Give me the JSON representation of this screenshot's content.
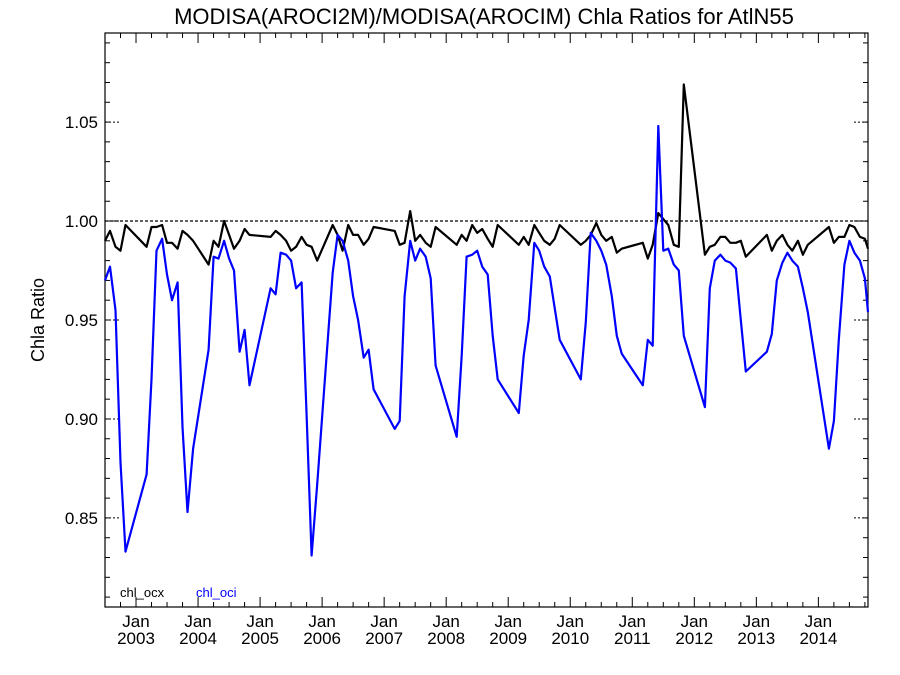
{
  "chart_data": {
    "type": "line",
    "title": "MODISA(AROCI2M)/MODISA(AROCIM)  Chla Ratios for AtlN55",
    "ylabel": "Chla Ratio",
    "xlabel": "",
    "ylim": [
      0.805,
      1.095
    ],
    "xlim": [
      2002.5,
      2014.8
    ],
    "x_ticks": [
      {
        "month": "Jan",
        "year": "2003"
      },
      {
        "month": "Jan",
        "year": "2004"
      },
      {
        "month": "Jan",
        "year": "2005"
      },
      {
        "month": "Jan",
        "year": "2006"
      },
      {
        "month": "Jan",
        "year": "2007"
      },
      {
        "month": "Jan",
        "year": "2008"
      },
      {
        "month": "Jan",
        "year": "2009"
      },
      {
        "month": "Jan",
        "year": "2010"
      },
      {
        "month": "Jan",
        "year": "2011"
      },
      {
        "month": "Jan",
        "year": "2012"
      },
      {
        "month": "Jan",
        "year": "2013"
      },
      {
        "month": "Jan",
        "year": "2014"
      }
    ],
    "y_ticks": [
      "0.85",
      "0.90",
      "0.95",
      "1.00",
      "1.05"
    ],
    "reference_line": 1.0,
    "grid": false,
    "legend_placement": "bottom-left",
    "series": [
      {
        "name": "chl_ocx",
        "color": "#000000",
        "x": [
          2002.5,
          2002.58,
          2002.67,
          2002.75,
          2002.83,
          2003.17,
          2003.25,
          2003.33,
          2003.42,
          2003.5,
          2003.58,
          2003.67,
          2003.75,
          2003.83,
          2003.92,
          2004.17,
          2004.25,
          2004.33,
          2004.42,
          2004.5,
          2004.58,
          2004.67,
          2004.75,
          2004.83,
          2005.17,
          2005.25,
          2005.33,
          2005.42,
          2005.5,
          2005.58,
          2005.67,
          2005.75,
          2005.83,
          2005.92,
          2006.17,
          2006.25,
          2006.33,
          2006.42,
          2006.5,
          2006.58,
          2006.67,
          2006.75,
          2006.83,
          2007.17,
          2007.25,
          2007.33,
          2007.42,
          2007.5,
          2007.58,
          2007.67,
          2007.75,
          2007.83,
          2008.17,
          2008.25,
          2008.33,
          2008.42,
          2008.5,
          2008.58,
          2008.67,
          2008.75,
          2008.83,
          2009.17,
          2009.25,
          2009.33,
          2009.42,
          2009.5,
          2009.58,
          2009.67,
          2009.75,
          2009.83,
          2010.17,
          2010.25,
          2010.33,
          2010.42,
          2010.5,
          2010.58,
          2010.67,
          2010.75,
          2010.83,
          2011.17,
          2011.25,
          2011.33,
          2011.42,
          2011.5,
          2011.58,
          2011.67,
          2011.75,
          2011.83,
          2012.17,
          2012.25,
          2012.33,
          2012.42,
          2012.5,
          2012.58,
          2012.67,
          2012.75,
          2012.83,
          2013.17,
          2013.25,
          2013.33,
          2013.42,
          2013.5,
          2013.58,
          2013.67,
          2013.75,
          2013.83,
          2014.17,
          2014.25,
          2014.33,
          2014.42,
          2014.5,
          2014.58,
          2014.67,
          2014.75,
          2014.8
        ],
        "y": [
          0.99,
          0.995,
          0.987,
          0.985,
          0.998,
          0.987,
          0.997,
          0.997,
          0.998,
          0.989,
          0.989,
          0.986,
          0.995,
          0.993,
          0.99,
          0.978,
          0.99,
          0.987,
          1.0,
          0.993,
          0.986,
          0.99,
          0.996,
          0.993,
          0.992,
          0.995,
          0.993,
          0.99,
          0.985,
          0.987,
          0.992,
          0.988,
          0.987,
          0.98,
          0.998,
          0.993,
          0.985,
          0.998,
          0.993,
          0.993,
          0.988,
          0.991,
          0.997,
          0.995,
          0.988,
          0.989,
          1.005,
          0.99,
          0.993,
          0.989,
          0.987,
          0.997,
          0.988,
          0.993,
          0.99,
          0.998,
          0.994,
          0.996,
          0.991,
          0.987,
          0.998,
          0.988,
          0.992,
          0.988,
          0.998,
          0.994,
          0.99,
          0.988,
          0.991,
          0.998,
          0.988,
          0.99,
          0.993,
          0.999,
          0.993,
          0.99,
          0.992,
          0.984,
          0.986,
          0.989,
          0.981,
          0.988,
          1.004,
          1.001,
          0.998,
          0.988,
          0.987,
          1.069,
          0.983,
          0.987,
          0.988,
          0.992,
          0.992,
          0.989,
          0.989,
          0.99,
          0.982,
          0.993,
          0.985,
          0.99,
          0.993,
          0.988,
          0.985,
          0.99,
          0.983,
          0.988,
          0.997,
          0.989,
          0.992,
          0.992,
          0.998,
          0.997,
          0.992,
          0.991,
          0.986
        ]
      },
      {
        "name": "chl_oci",
        "color": "#0000ff",
        "x": [
          2002.5,
          2002.58,
          2002.67,
          2002.75,
          2002.83,
          2003.17,
          2003.25,
          2003.33,
          2003.42,
          2003.5,
          2003.58,
          2003.67,
          2003.75,
          2003.83,
          2003.92,
          2004.17,
          2004.25,
          2004.33,
          2004.42,
          2004.5,
          2004.58,
          2004.67,
          2004.75,
          2004.83,
          2005.17,
          2005.25,
          2005.33,
          2005.42,
          2005.5,
          2005.58,
          2005.67,
          2005.75,
          2005.83,
          2005.92,
          2006.17,
          2006.25,
          2006.33,
          2006.42,
          2006.5,
          2006.58,
          2006.67,
          2006.75,
          2006.83,
          2007.17,
          2007.25,
          2007.33,
          2007.42,
          2007.5,
          2007.58,
          2007.67,
          2007.75,
          2007.83,
          2008.17,
          2008.25,
          2008.33,
          2008.42,
          2008.5,
          2008.58,
          2008.67,
          2008.75,
          2008.83,
          2009.17,
          2009.25,
          2009.33,
          2009.42,
          2009.5,
          2009.58,
          2009.67,
          2009.75,
          2009.83,
          2010.17,
          2010.25,
          2010.33,
          2010.42,
          2010.5,
          2010.58,
          2010.67,
          2010.75,
          2010.83,
          2011.17,
          2011.25,
          2011.33,
          2011.42,
          2011.5,
          2011.58,
          2011.67,
          2011.75,
          2011.83,
          2012.17,
          2012.25,
          2012.33,
          2012.42,
          2012.5,
          2012.58,
          2012.67,
          2012.75,
          2012.83,
          2013.17,
          2013.25,
          2013.33,
          2013.42,
          2013.5,
          2013.58,
          2013.67,
          2013.75,
          2013.83,
          2014.17,
          2014.25,
          2014.33,
          2014.42,
          2014.5,
          2014.58,
          2014.67,
          2014.75,
          2014.8
        ],
        "y": [
          0.97,
          0.977,
          0.955,
          0.878,
          0.833,
          0.872,
          0.92,
          0.985,
          0.991,
          0.973,
          0.96,
          0.969,
          0.896,
          0.853,
          0.885,
          0.935,
          0.982,
          0.981,
          0.99,
          0.981,
          0.975,
          0.934,
          0.945,
          0.917,
          0.966,
          0.963,
          0.984,
          0.983,
          0.98,
          0.966,
          0.969,
          0.902,
          0.831,
          0.867,
          0.974,
          0.993,
          0.99,
          0.98,
          0.962,
          0.95,
          0.931,
          0.935,
          0.915,
          0.895,
          0.899,
          0.962,
          0.99,
          0.98,
          0.986,
          0.982,
          0.971,
          0.927,
          0.891,
          0.932,
          0.982,
          0.983,
          0.985,
          0.977,
          0.973,
          0.942,
          0.92,
          0.903,
          0.932,
          0.95,
          0.989,
          0.985,
          0.977,
          0.972,
          0.956,
          0.94,
          0.92,
          0.949,
          0.994,
          0.99,
          0.985,
          0.978,
          0.962,
          0.942,
          0.933,
          0.917,
          0.94,
          0.937,
          1.048,
          0.985,
          0.986,
          0.978,
          0.975,
          0.942,
          0.906,
          0.966,
          0.98,
          0.983,
          0.98,
          0.979,
          0.976,
          0.95,
          0.924,
          0.934,
          0.943,
          0.97,
          0.979,
          0.984,
          0.98,
          0.977,
          0.966,
          0.954,
          0.885,
          0.899,
          0.94,
          0.978,
          0.99,
          0.984,
          0.98,
          0.971,
          0.954
        ]
      }
    ]
  }
}
